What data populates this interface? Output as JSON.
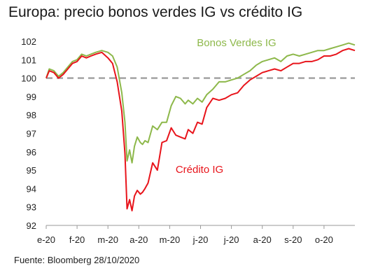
{
  "title": "Europa: precio bonos verdes IG vs crédito IG",
  "source": "Fuente: Bloomberg  28/10/2020",
  "chart_data": {
    "type": "line",
    "title": "Europa: precio bonos verdes IG vs crédito IG",
    "xlabel": "",
    "ylabel": "",
    "ylim": [
      92,
      102
    ],
    "yticks": [
      92,
      93,
      94,
      95,
      96,
      97,
      98,
      99,
      100,
      101,
      102
    ],
    "xlim": [
      0,
      10
    ],
    "xtick_labels": [
      "e-20",
      "f-20",
      "m-20",
      "a-20",
      "m-20",
      "j-20",
      "j-20",
      "a-20",
      "s-20",
      "o-20"
    ],
    "grid": false,
    "reference_line": {
      "value": 100,
      "style": "dashed",
      "color": "#9e9e9e"
    },
    "series": [
      {
        "name": "Bonos Verdes IG",
        "color": "#8db84a",
        "label_position": "upper-right",
        "x": [
          0,
          0.1,
          0.25,
          0.4,
          0.55,
          0.7,
          0.85,
          1.0,
          1.15,
          1.3,
          1.45,
          1.6,
          1.8,
          2.0,
          2.15,
          2.3,
          2.45,
          2.55,
          2.62,
          2.7,
          2.78,
          2.86,
          2.95,
          3.05,
          3.12,
          3.2,
          3.3,
          3.45,
          3.6,
          3.75,
          3.9,
          4.05,
          4.2,
          4.35,
          4.5,
          4.6,
          4.75,
          4.9,
          5.05,
          5.2,
          5.4,
          5.6,
          5.8,
          6.0,
          6.2,
          6.4,
          6.6,
          6.8,
          7.0,
          7.2,
          7.4,
          7.6,
          7.8,
          8.0,
          8.2,
          8.4,
          8.6,
          8.8,
          9.0,
          9.2,
          9.4,
          9.6,
          9.8,
          10.0
        ],
        "values": [
          100.0,
          100.5,
          100.4,
          100.1,
          100.3,
          100.6,
          100.9,
          101.0,
          101.3,
          101.2,
          101.3,
          101.4,
          101.5,
          101.4,
          101.2,
          100.6,
          99.2,
          97.6,
          95.5,
          96.1,
          95.4,
          96.3,
          96.8,
          96.5,
          96.4,
          96.6,
          96.5,
          97.4,
          97.2,
          97.6,
          97.6,
          98.5,
          99.0,
          98.9,
          98.6,
          98.8,
          98.6,
          98.9,
          98.7,
          99.1,
          99.4,
          99.8,
          99.8,
          99.9,
          100.0,
          100.2,
          100.4,
          100.7,
          100.9,
          101.0,
          101.1,
          100.9,
          101.2,
          101.3,
          101.2,
          101.3,
          101.4,
          101.5,
          101.5,
          101.6,
          101.7,
          101.8,
          101.9,
          101.8
        ]
      },
      {
        "name": "Crédito IG",
        "color": "#e8141b",
        "label_position": "center",
        "x": [
          0,
          0.1,
          0.25,
          0.4,
          0.55,
          0.7,
          0.85,
          1.0,
          1.15,
          1.3,
          1.45,
          1.6,
          1.8,
          2.0,
          2.15,
          2.3,
          2.45,
          2.55,
          2.62,
          2.7,
          2.78,
          2.86,
          2.95,
          3.05,
          3.12,
          3.2,
          3.3,
          3.45,
          3.6,
          3.75,
          3.9,
          4.05,
          4.2,
          4.35,
          4.5,
          4.6,
          4.75,
          4.9,
          5.05,
          5.2,
          5.4,
          5.6,
          5.8,
          6.0,
          6.2,
          6.4,
          6.6,
          6.8,
          7.0,
          7.2,
          7.4,
          7.6,
          7.8,
          8.0,
          8.2,
          8.4,
          8.6,
          8.8,
          9.0,
          9.2,
          9.4,
          9.6,
          9.8,
          10.0
        ],
        "values": [
          100.0,
          100.4,
          100.3,
          100.0,
          100.2,
          100.5,
          100.8,
          100.9,
          101.2,
          101.1,
          101.2,
          101.3,
          101.4,
          101.1,
          100.8,
          99.8,
          98.2,
          95.9,
          92.9,
          93.4,
          92.8,
          93.6,
          93.9,
          93.7,
          93.8,
          94.0,
          94.3,
          95.4,
          95.0,
          96.5,
          96.6,
          97.3,
          96.9,
          96.8,
          96.7,
          97.2,
          97.0,
          97.6,
          97.5,
          98.4,
          98.9,
          98.8,
          98.9,
          99.1,
          99.2,
          99.6,
          99.9,
          100.1,
          100.3,
          100.4,
          100.5,
          100.4,
          100.6,
          100.8,
          100.8,
          100.9,
          100.9,
          101.0,
          101.2,
          101.2,
          101.3,
          101.5,
          101.6,
          101.5
        ]
      }
    ]
  }
}
